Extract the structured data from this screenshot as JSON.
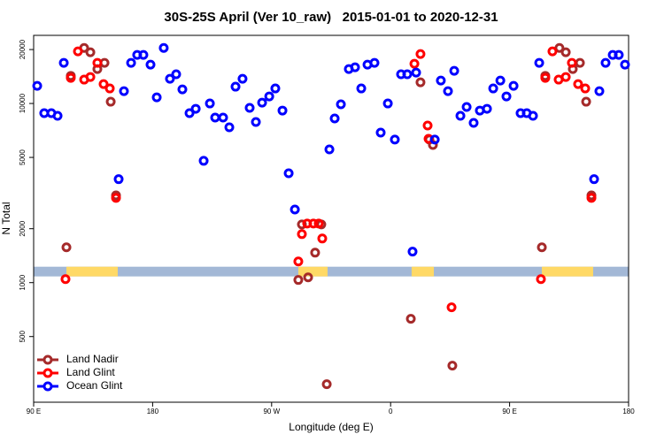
{
  "chart_data": {
    "type": "scatter",
    "title": "30S-25S April (Ver 10_raw)   2015-01-01 to 2020-12-31",
    "xlabel": "Longitude (deg E)",
    "ylabel": "N Total",
    "xlim": [
      90,
      540
    ],
    "xticks": [
      {
        "value": 90,
        "label": "90 E"
      },
      180,
      {
        "value": 270,
        "label": "90 W"
      },
      {
        "value": 360,
        "label": "0"
      },
      {
        "value": 450,
        "label": "90 E"
      },
      {
        "value": 540,
        "label": "180"
      }
    ],
    "ylim": [
      215,
      24000
    ],
    "yscale": "log",
    "yticks": [
      500,
      1000,
      2000,
      5000,
      10000,
      20000
    ],
    "legend": "lower left",
    "surface_band": {
      "ylim": [
        1083,
        1227
      ],
      "color": "#a3b8d6",
      "land_color": "#ffd966",
      "land": [
        [
          114.8,
          153.6
        ],
        [
          290.2,
          312.3
        ],
        [
          375.9,
          392.7
        ],
        [
          474.4,
          513.2
        ]
      ]
    },
    "series": [
      {
        "name": "Land Nadir",
        "color": "#a52a2a",
        "x": [
          114.8,
          118.1,
          128.2,
          132.9,
          138.2,
          143.6,
          148.3,
          152.3,
          290.2,
          292.9,
          297.6,
          302.9,
          307.6,
          311.7,
          375.3,
          382.6,
          389.3,
          392.0,
          406.7,
          474.4,
          477.0,
          487.7,
          492.5,
          497.8,
          503.2,
          507.9,
          511.9
        ],
        "values": [
          1575,
          14260,
          20420,
          19320,
          15560,
          16860,
          10230,
          3070,
          1035,
          2114,
          1070,
          1470,
          2114,
          271,
          628,
          13130,
          6290,
          5870,
          344,
          1575,
          14260,
          20420,
          19320,
          15560,
          16860,
          10230,
          3070
        ]
      },
      {
        "name": "Land Glint",
        "color": "#ff0000",
        "x": [
          114.1,
          118.1,
          123.5,
          128.2,
          132.9,
          138.2,
          142.9,
          147.6,
          152.3,
          290.2,
          292.9,
          296.9,
          301.6,
          305.6,
          308.3,
          378.0,
          382.6,
          388.0,
          388.7,
          406.1,
          473.7,
          477.0,
          482.4,
          487.1,
          492.5,
          497.1,
          501.8,
          507.2,
          511.9
        ],
        "values": [
          1046,
          13900,
          19530,
          13590,
          14060,
          16860,
          12830,
          12130,
          2970,
          1313,
          1866,
          2138,
          2138,
          2138,
          1763,
          16660,
          18870,
          7530,
          6350,
          728,
          1046,
          13900,
          19530,
          13590,
          14060,
          16860,
          12830,
          12130,
          2970
        ]
      },
      {
        "name": "Ocean Glint",
        "color": "#0000ff",
        "x": [
          92.7,
          98.0,
          103.4,
          108.1,
          112.8,
          154.3,
          158.3,
          163.7,
          168.3,
          173.0,
          178.4,
          183.1,
          188.4,
          193.1,
          197.8,
          202.5,
          207.9,
          212.6,
          218.6,
          223.3,
          227.3,
          233.3,
          238.0,
          242.7,
          248.0,
          253.4,
          258.1,
          262.8,
          268.2,
          272.8,
          278.2,
          282.9,
          287.6,
          313.7,
          317.7,
          322.4,
          328.4,
          333.1,
          337.8,
          342.5,
          347.8,
          352.5,
          357.9,
          363.2,
          367.9,
          372.6,
          376.6,
          379.3,
          393.4,
          398.0,
          403.4,
          408.1,
          412.8,
          417.5,
          422.8,
          427.5,
          432.9,
          437.6,
          443.0,
          447.6,
          453.0,
          458.3,
          463.0,
          467.7,
          472.4,
          513.9,
          517.9,
          522.6,
          528.0,
          532.6,
          537.3
        ],
        "values": [
          12540,
          8830,
          8830,
          8530,
          16860,
          3780,
          11720,
          16860,
          18660,
          18660,
          16470,
          10820,
          20420,
          13740,
          14550,
          11990,
          8830,
          9340,
          4785,
          10000,
          8340,
          8340,
          7360,
          12410,
          13740,
          9450,
          7880,
          10110,
          10950,
          12130,
          9130,
          4080,
          2560,
          5540,
          8250,
          9890,
          15560,
          15920,
          12130,
          16470,
          16860,
          6880,
          10000,
          6290,
          14550,
          14550,
          1490,
          14870,
          6290,
          13430,
          11720,
          15210,
          8530,
          9560,
          7790,
          9130,
          9340,
          12130,
          13430,
          10950,
          12540,
          8830,
          8830,
          8530,
          16860,
          3780,
          11720,
          16860,
          18660,
          18660,
          16470
        ]
      }
    ]
  }
}
